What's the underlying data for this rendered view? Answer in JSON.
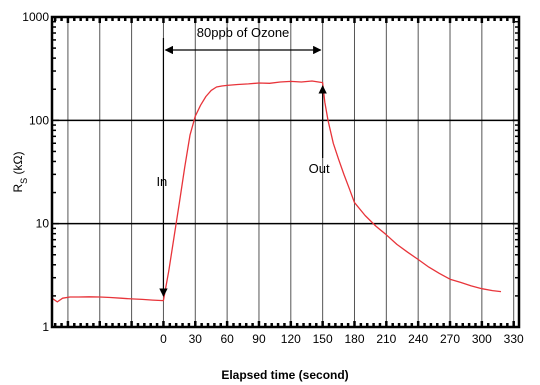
{
  "chart_data": {
    "type": "line",
    "title": "",
    "xlabel": "Elapsed time (second)",
    "ylabel_main": "R",
    "ylabel_sub": "S",
    "ylabel_rest": " (kΩ)",
    "yscale": "log",
    "xlim": [
      -105,
      335
    ],
    "ylim": [
      1,
      1000
    ],
    "xticks": [
      0,
      30,
      60,
      90,
      120,
      150,
      180,
      210,
      240,
      270,
      300,
      330
    ],
    "yticks": [
      1,
      10,
      100,
      1000
    ],
    "ytick_labels": [
      "1",
      "10",
      "100",
      "1000"
    ],
    "grid": "vertical",
    "line_color": "#e8343a",
    "series": [
      {
        "x": [
          -105,
          -100,
          -95,
          -88,
          -80,
          -70,
          -60,
          -50,
          -40,
          -30,
          -20,
          -10,
          0,
          5,
          10,
          15,
          20,
          25,
          30,
          35,
          40,
          45,
          50,
          55,
          60,
          70,
          80,
          90,
          100,
          110,
          120,
          130,
          140,
          150,
          152,
          155,
          160,
          165,
          170,
          175,
          180,
          190,
          200,
          210,
          220,
          230,
          240,
          250,
          260,
          270,
          280,
          290,
          300,
          310,
          318
        ],
        "y": [
          1.9,
          1.75,
          1.9,
          1.95,
          1.95,
          1.96,
          1.95,
          1.93,
          1.9,
          1.87,
          1.85,
          1.82,
          1.8,
          3.5,
          7.5,
          16,
          35,
          72,
          110,
          140,
          170,
          195,
          210,
          215,
          218,
          222,
          225,
          230,
          228,
          235,
          238,
          235,
          240,
          232,
          150,
          100,
          60,
          42,
          30,
          22,
          16,
          12,
          9.5,
          7.8,
          6.3,
          5.3,
          4.5,
          3.8,
          3.3,
          2.9,
          2.7,
          2.5,
          2.35,
          2.25,
          2.2
        ]
      }
    ],
    "annotations": {
      "span_label": "80ppb of Ozone",
      "span": [
        0,
        150
      ],
      "in_label": "In",
      "in_x": 0,
      "out_label": "Out",
      "out_x": 150
    }
  }
}
